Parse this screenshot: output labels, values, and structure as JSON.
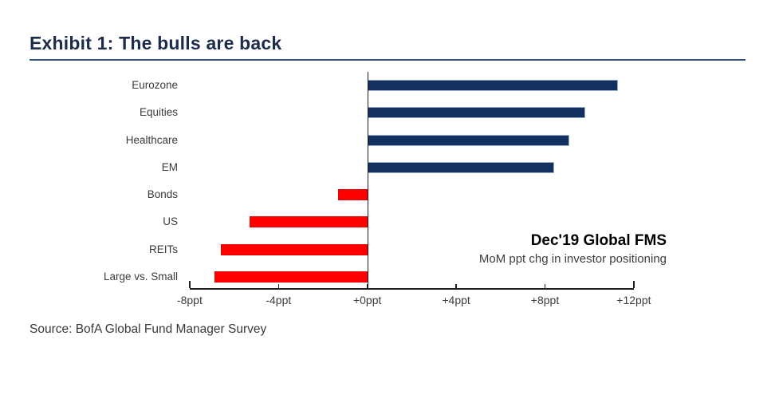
{
  "header": {
    "title": "Exhibit 1: The bulls are back"
  },
  "chart_data": {
    "type": "bar",
    "orientation": "horizontal",
    "categories": [
      "Eurozone",
      "Equities",
      "Healthcare",
      "EM",
      "Bonds",
      "US",
      "REITs",
      "Large vs. Small"
    ],
    "values": [
      11.3,
      9.8,
      9.1,
      8.4,
      -1.3,
      -5.3,
      -6.6,
      -6.9
    ],
    "unit": "ppt",
    "xlim": [
      -8,
      12
    ],
    "x_ticks": [
      -8,
      -4,
      0,
      4,
      8,
      12
    ],
    "x_tick_labels": [
      "-8ppt",
      "-4ppt",
      "+0ppt",
      "+4ppt",
      "+8ppt",
      "+12ppt"
    ],
    "grid": false,
    "legend": "none",
    "positive_color": "#13305e",
    "negative_color": "#ff0000",
    "annotation": {
      "title": "Dec'19 Global FMS",
      "subtitle": "MoM ppt chg in investor positioning"
    }
  },
  "footer": {
    "source": "Source: BofA Global Fund Manager Survey"
  }
}
